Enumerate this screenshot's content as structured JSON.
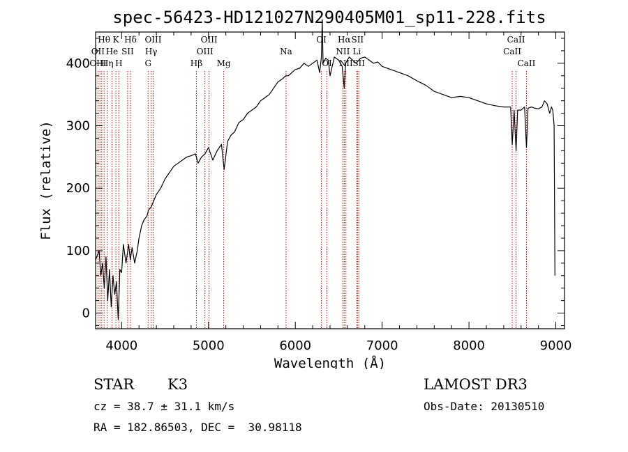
{
  "chart_data": {
    "type": "line",
    "title": "spec-56423-HD121027N290405M01_sp11-228.fits",
    "xlabel": "Wavelength (Å)",
    "ylabel": "Flux (relative)",
    "xlim": [
      3700,
      9100
    ],
    "ylim": [
      -25,
      450
    ],
    "x_ticks": [
      4000,
      5000,
      6000,
      7000,
      8000,
      9000
    ],
    "y_ticks": [
      0,
      100,
      200,
      300,
      400
    ],
    "grid": false,
    "legend": "none",
    "series": [
      {
        "x": [
          3700,
          3740,
          3760,
          3780,
          3800,
          3820,
          3840,
          3860,
          3880,
          3900,
          3920,
          3940,
          3960,
          3980,
          4000,
          4020,
          4050,
          4080,
          4100,
          4120,
          4150,
          4180,
          4200,
          4230,
          4260,
          4290,
          4310,
          4340,
          4370,
          4400,
          4450,
          4500,
          4550,
          4600,
          4650,
          4700,
          4750,
          4800,
          4850,
          4880,
          4920,
          4960,
          5000,
          5050,
          5100,
          5150,
          5180,
          5220,
          5260,
          5300,
          5350,
          5400,
          5450,
          5500,
          5550,
          5600,
          5650,
          5700,
          5750,
          5800,
          5850,
          5890,
          5920,
          5960,
          6000,
          6050,
          6100,
          6150,
          6200,
          6250,
          6280,
          6300,
          6310,
          6320,
          6350,
          6380,
          6400,
          6450,
          6500,
          6540,
          6563,
          6580,
          6620,
          6660,
          6700,
          6750,
          6800,
          6850,
          6900,
          6950,
          7000,
          7100,
          7200,
          7300,
          7400,
          7500,
          7600,
          7700,
          7800,
          7900,
          8000,
          8100,
          8200,
          8300,
          8400,
          8480,
          8498,
          8520,
          8542,
          8560,
          8600,
          8640,
          8662,
          8680,
          8720,
          8760,
          8800,
          8840,
          8870,
          8900,
          8930,
          8950,
          8965,
          8980,
          8990
        ],
        "y": [
          85,
          100,
          60,
          80,
          40,
          90,
          20,
          70,
          10,
          60,
          30,
          50,
          -10,
          70,
          65,
          110,
          80,
          110,
          85,
          105,
          80,
          100,
          120,
          140,
          150,
          155,
          165,
          170,
          180,
          190,
          200,
          215,
          225,
          235,
          240,
          245,
          250,
          252,
          255,
          240,
          250,
          255,
          265,
          245,
          260,
          270,
          230,
          275,
          285,
          290,
          305,
          310,
          320,
          325,
          330,
          340,
          345,
          350,
          360,
          370,
          375,
          380,
          380,
          385,
          390,
          392,
          400,
          395,
          400,
          405,
          385,
          410,
          470,
          400,
          408,
          405,
          380,
          410,
          405,
          395,
          360,
          400,
          410,
          405,
          400,
          408,
          410,
          405,
          400,
          402,
          395,
          390,
          385,
          380,
          372,
          365,
          355,
          350,
          345,
          347,
          345,
          340,
          335,
          332,
          330,
          330,
          270,
          325,
          260,
          325,
          325,
          330,
          265,
          328,
          330,
          328,
          327,
          330,
          340,
          335,
          320,
          330,
          325,
          300,
          60
        ]
      }
    ],
    "line_markers": [
      {
        "label": "Hθ",
        "x": 3798,
        "row": 0
      },
      {
        "label": "K",
        "x": 3934,
        "row": 0
      },
      {
        "label": "Hδ",
        "x": 4102,
        "row": 0
      },
      {
        "label": "OIII",
        "x": 4363,
        "row": 0
      },
      {
        "label": "OIII",
        "x": 5007,
        "row": 0
      },
      {
        "label": "OI",
        "x": 6300,
        "row": 0
      },
      {
        "label": "Hα",
        "x": 6563,
        "row": 0
      },
      {
        "label": "SII",
        "x": 6716,
        "row": 0
      },
      {
        "label": "CaII",
        "x": 8542,
        "row": 0
      },
      {
        "label": "OII",
        "x": 3727,
        "row": 1
      },
      {
        "label": "He",
        "x": 3889,
        "row": 1
      },
      {
        "label": "SII",
        "x": 4069,
        "row": 1
      },
      {
        "label": "Hγ",
        "x": 4340,
        "row": 1
      },
      {
        "label": "OIII",
        "x": 4959,
        "row": 1
      },
      {
        "label": "Na",
        "x": 5893,
        "row": 1
      },
      {
        "label": "NII",
        "x": 6548,
        "row": 1
      },
      {
        "label": "Li",
        "x": 6708,
        "row": 1
      },
      {
        "label": "CaII",
        "x": 8498,
        "row": 1
      },
      {
        "label": "OIII",
        "x": 3727,
        "row": 2
      },
      {
        "label": "Hη",
        "x": 3835,
        "row": 2
      },
      {
        "label": "H",
        "x": 3968,
        "row": 2
      },
      {
        "label": "G",
        "x": 4305,
        "row": 2
      },
      {
        "label": "Hβ",
        "x": 4861,
        "row": 2
      },
      {
        "label": "Mg",
        "x": 5175,
        "row": 2
      },
      {
        "label": "OI",
        "x": 6364,
        "row": 2
      },
      {
        "label": "NII",
        "x": 6583,
        "row": 2
      },
      {
        "label": "SII",
        "x": 6731,
        "row": 2
      },
      {
        "label": "CaII",
        "x": 8662,
        "row": 2
      }
    ],
    "marker_lines": [
      3727,
      3750,
      3771,
      3798,
      3835,
      3889,
      3934,
      3968,
      4069,
      4102,
      4305,
      4340,
      4363,
      4861,
      4959,
      5007,
      5175,
      5893,
      6300,
      6364,
      6548,
      6563,
      6583,
      6708,
      6716,
      6731,
      8498,
      8542,
      8662
    ],
    "colors": {
      "spectrum": "#000000",
      "marker_line": "#cc0000",
      "axes": "#000000"
    }
  },
  "info": {
    "object_class": "STAR",
    "subclass": "K3",
    "survey": "LAMOST DR3",
    "redshift": "cz = 38.7 ± 31.1 km/s",
    "obs_date": "Obs-Date: 20130510",
    "coords": "RA = 182.86503, DEC =  30.98118"
  }
}
